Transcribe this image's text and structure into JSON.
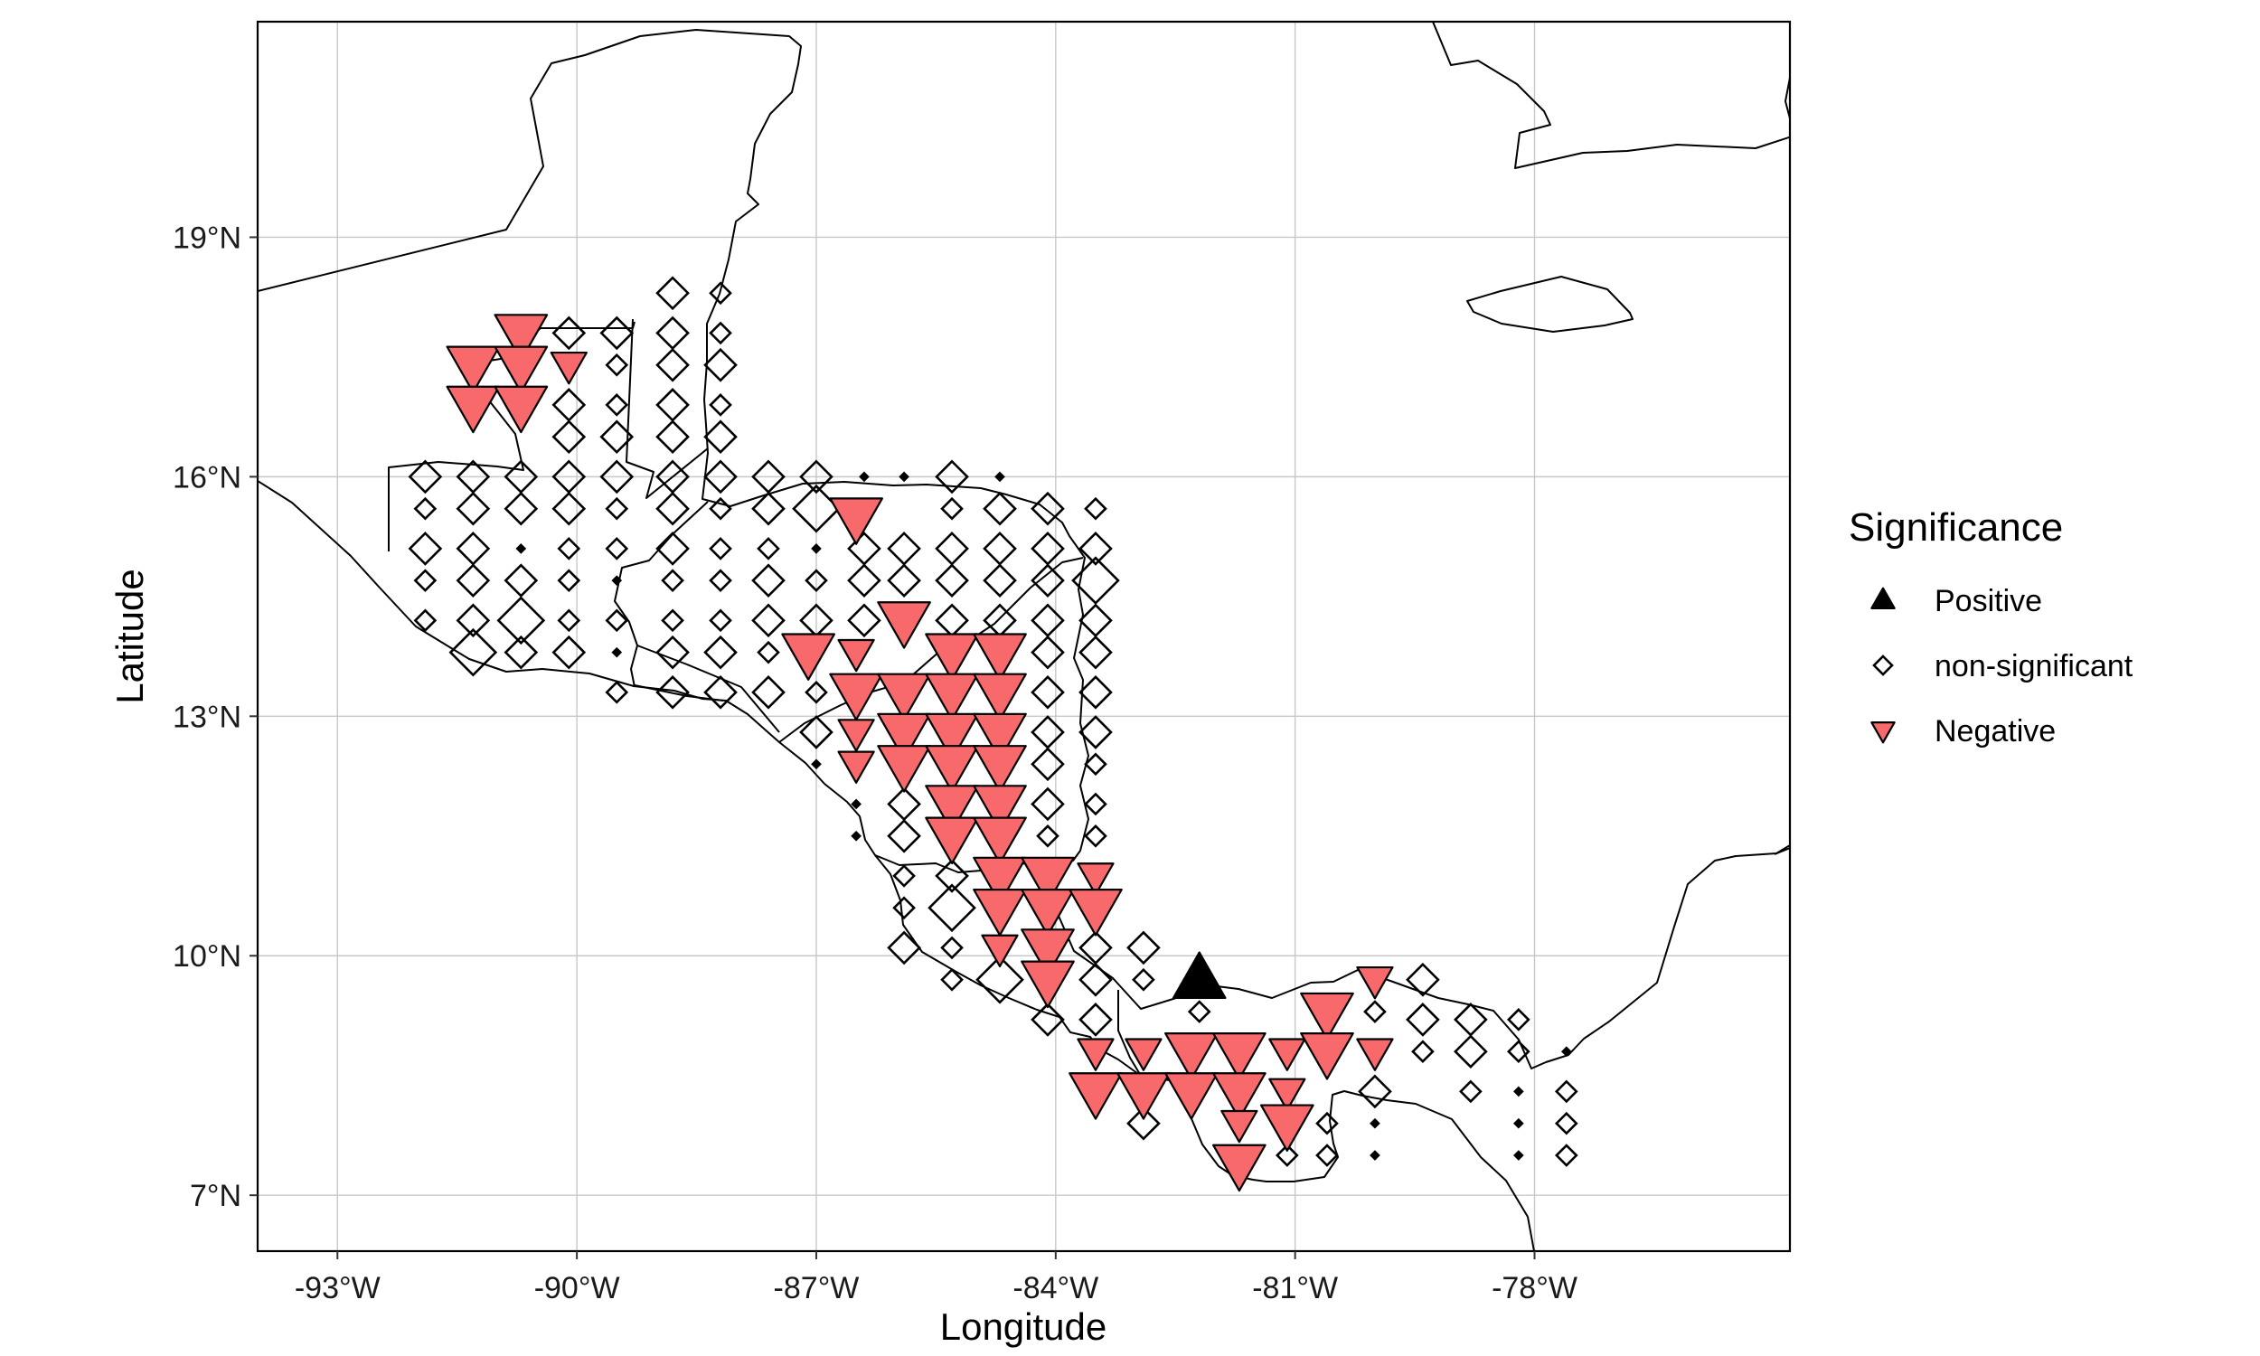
{
  "chart_data": {
    "type": "scatter",
    "xlabel": "Longitude",
    "ylabel": "Latitude",
    "xlim": [
      -94,
      -74.8
    ],
    "ylim": [
      6.3,
      21.7
    ],
    "x_ticks": [
      {
        "value": -93,
        "label": "-93°W"
      },
      {
        "value": -90,
        "label": "-90°W"
      },
      {
        "value": -87,
        "label": "-87°W"
      },
      {
        "value": -84,
        "label": "-84°W"
      },
      {
        "value": -81,
        "label": "-81°W"
      },
      {
        "value": -78,
        "label": "-78°W"
      }
    ],
    "y_ticks": [
      {
        "value": 7,
        "label": "7°N"
      },
      {
        "value": 10,
        "label": "10°N"
      },
      {
        "value": 13,
        "label": "13°N"
      },
      {
        "value": 16,
        "label": "16°N"
      },
      {
        "value": 19,
        "label": "19°N"
      }
    ],
    "grid": true,
    "legend": {
      "title": "Significance",
      "position": "right",
      "entries": [
        {
          "label": "Positive",
          "shape": "triangle-up",
          "color": "#000000"
        },
        {
          "label": "non-significant",
          "shape": "diamond-open",
          "color": "#000000"
        },
        {
          "label": "Negative",
          "shape": "triangle-down",
          "color": "#F8696B"
        }
      ]
    },
    "series": [
      {
        "name": "Positive",
        "points": [
          [
            -82.2,
            9.7,
            3
          ]
        ]
      },
      {
        "name": "Negative",
        "points": [
          [
            -90.7,
            17.8,
            3
          ],
          [
            -91.3,
            17.4,
            3
          ],
          [
            -90.7,
            17.4,
            3
          ],
          [
            -90.1,
            17.4,
            2
          ],
          [
            -91.3,
            16.9,
            3
          ],
          [
            -90.7,
            16.9,
            3
          ],
          [
            -86.5,
            15.5,
            3
          ],
          [
            -85.9,
            14.2,
            3
          ],
          [
            -87.1,
            13.8,
            3
          ],
          [
            -86.5,
            13.8,
            2
          ],
          [
            -85.3,
            13.8,
            3
          ],
          [
            -84.7,
            13.8,
            3
          ],
          [
            -86.5,
            13.3,
            3
          ],
          [
            -85.9,
            13.3,
            3
          ],
          [
            -85.3,
            13.3,
            3
          ],
          [
            -84.7,
            13.3,
            3
          ],
          [
            -86.5,
            12.8,
            2
          ],
          [
            -85.9,
            12.8,
            3
          ],
          [
            -85.3,
            12.8,
            3
          ],
          [
            -84.7,
            12.8,
            3
          ],
          [
            -86.5,
            12.4,
            2
          ],
          [
            -85.9,
            12.4,
            3
          ],
          [
            -85.3,
            12.4,
            3
          ],
          [
            -84.7,
            12.4,
            3
          ],
          [
            -85.3,
            11.9,
            3
          ],
          [
            -84.7,
            11.9,
            3
          ],
          [
            -85.3,
            11.5,
            3
          ],
          [
            -84.7,
            11.5,
            3
          ],
          [
            -84.7,
            11.0,
            3
          ],
          [
            -84.1,
            11.0,
            3
          ],
          [
            -83.5,
            11.0,
            2
          ],
          [
            -84.7,
            10.6,
            3
          ],
          [
            -84.1,
            10.6,
            3
          ],
          [
            -83.5,
            10.6,
            3
          ],
          [
            -84.7,
            10.1,
            2
          ],
          [
            -84.1,
            10.1,
            3
          ],
          [
            -84.1,
            9.7,
            3
          ],
          [
            -80.0,
            9.7,
            2
          ],
          [
            -80.6,
            9.3,
            3
          ],
          [
            -83.5,
            8.8,
            2
          ],
          [
            -82.9,
            8.8,
            2
          ],
          [
            -82.3,
            8.8,
            3
          ],
          [
            -81.7,
            8.8,
            3
          ],
          [
            -81.1,
            8.8,
            2
          ],
          [
            -80.6,
            8.8,
            3
          ],
          [
            -80.0,
            8.8,
            2
          ],
          [
            -83.5,
            8.3,
            3
          ],
          [
            -82.9,
            8.3,
            3
          ],
          [
            -82.3,
            8.3,
            3
          ],
          [
            -81.7,
            8.3,
            3
          ],
          [
            -81.1,
            8.3,
            2
          ],
          [
            -81.7,
            7.9,
            2
          ],
          [
            -81.1,
            7.9,
            3
          ],
          [
            -81.7,
            7.4,
            3
          ]
        ]
      },
      {
        "name": "non-significant",
        "points": [
          [
            -88.8,
            18.3,
            2
          ],
          [
            -88.2,
            18.3,
            1
          ],
          [
            -90.1,
            17.8,
            2
          ],
          [
            -89.5,
            17.8,
            2
          ],
          [
            -88.8,
            17.8,
            2
          ],
          [
            -88.2,
            17.8,
            1
          ],
          [
            -89.5,
            17.4,
            1
          ],
          [
            -88.8,
            17.4,
            2
          ],
          [
            -88.2,
            17.4,
            2
          ],
          [
            -90.1,
            16.9,
            2
          ],
          [
            -89.5,
            16.9,
            1
          ],
          [
            -88.8,
            16.9,
            2
          ],
          [
            -88.2,
            16.9,
            1
          ],
          [
            -90.1,
            16.5,
            2
          ],
          [
            -89.5,
            16.5,
            2
          ],
          [
            -88.8,
            16.5,
            2
          ],
          [
            -88.2,
            16.5,
            2
          ],
          [
            -90.7,
            16.0,
            2
          ],
          [
            -90.1,
            16.0,
            2
          ],
          [
            -89.5,
            16.0,
            2
          ],
          [
            -88.8,
            16.0,
            2
          ],
          [
            -88.2,
            16.0,
            2
          ],
          [
            -87.6,
            16.0,
            2
          ],
          [
            -87.0,
            16.0,
            2
          ],
          [
            -86.4,
            16.0,
            0
          ],
          [
            -85.9,
            16.0,
            0
          ],
          [
            -85.3,
            16.0,
            2
          ],
          [
            -84.7,
            16.0,
            0
          ],
          [
            -91.9,
            16.0,
            2
          ],
          [
            -91.3,
            16.0,
            2
          ],
          [
            -91.9,
            15.6,
            1
          ],
          [
            -91.3,
            15.6,
            2
          ],
          [
            -90.7,
            15.6,
            2
          ],
          [
            -90.1,
            15.6,
            2
          ],
          [
            -89.5,
            15.6,
            1
          ],
          [
            -88.8,
            15.6,
            2
          ],
          [
            -88.2,
            15.6,
            1
          ],
          [
            -87.6,
            15.6,
            2
          ],
          [
            -87.0,
            15.6,
            3
          ],
          [
            -85.3,
            15.6,
            1
          ],
          [
            -84.7,
            15.6,
            2
          ],
          [
            -84.1,
            15.6,
            2
          ],
          [
            -83.5,
            15.6,
            1
          ],
          [
            -91.9,
            15.1,
            2
          ],
          [
            -91.3,
            15.1,
            2
          ],
          [
            -90.7,
            15.1,
            0
          ],
          [
            -90.1,
            15.1,
            1
          ],
          [
            -89.5,
            15.1,
            1
          ],
          [
            -88.8,
            15.1,
            2
          ],
          [
            -88.2,
            15.1,
            1
          ],
          [
            -87.6,
            15.1,
            1
          ],
          [
            -87.0,
            15.1,
            0
          ],
          [
            -86.4,
            15.1,
            2
          ],
          [
            -85.9,
            15.1,
            2
          ],
          [
            -85.3,
            15.1,
            2
          ],
          [
            -84.7,
            15.1,
            2
          ],
          [
            -84.1,
            15.1,
            2
          ],
          [
            -83.5,
            15.1,
            2
          ],
          [
            -91.9,
            14.7,
            1
          ],
          [
            -91.3,
            14.7,
            2
          ],
          [
            -90.7,
            14.7,
            2
          ],
          [
            -90.1,
            14.7,
            1
          ],
          [
            -89.5,
            14.7,
            0
          ],
          [
            -88.8,
            14.7,
            1
          ],
          [
            -88.2,
            14.7,
            1
          ],
          [
            -87.6,
            14.7,
            2
          ],
          [
            -87.0,
            14.7,
            1
          ],
          [
            -86.4,
            14.7,
            2
          ],
          [
            -85.9,
            14.7,
            2
          ],
          [
            -85.3,
            14.7,
            2
          ],
          [
            -84.7,
            14.7,
            2
          ],
          [
            -84.1,
            14.7,
            2
          ],
          [
            -83.5,
            14.7,
            3
          ],
          [
            -91.9,
            14.2,
            1
          ],
          [
            -91.3,
            14.2,
            2
          ],
          [
            -90.7,
            14.2,
            3
          ],
          [
            -90.1,
            14.2,
            1
          ],
          [
            -89.5,
            14.2,
            1
          ],
          [
            -88.8,
            14.2,
            1
          ],
          [
            -88.2,
            14.2,
            1
          ],
          [
            -87.6,
            14.2,
            2
          ],
          [
            -87.0,
            14.2,
            2
          ],
          [
            -86.4,
            14.2,
            2
          ],
          [
            -85.3,
            14.2,
            2
          ],
          [
            -84.7,
            14.2,
            2
          ],
          [
            -84.1,
            14.2,
            2
          ],
          [
            -83.5,
            14.2,
            2
          ],
          [
            -91.3,
            13.8,
            3
          ],
          [
            -90.7,
            13.8,
            2
          ],
          [
            -90.1,
            13.8,
            2
          ],
          [
            -89.5,
            13.8,
            0
          ],
          [
            -88.8,
            13.8,
            2
          ],
          [
            -88.2,
            13.8,
            2
          ],
          [
            -87.6,
            13.8,
            1
          ],
          [
            -84.1,
            13.8,
            2
          ],
          [
            -83.5,
            13.8,
            2
          ],
          [
            -89.5,
            13.3,
            1
          ],
          [
            -88.8,
            13.3,
            2
          ],
          [
            -88.2,
            13.3,
            2
          ],
          [
            -87.6,
            13.3,
            2
          ],
          [
            -87.0,
            13.3,
            1
          ],
          [
            -84.1,
            13.3,
            2
          ],
          [
            -83.5,
            13.3,
            2
          ],
          [
            -87.0,
            12.8,
            2
          ],
          [
            -84.1,
            12.8,
            2
          ],
          [
            -83.5,
            12.8,
            2
          ],
          [
            -87.0,
            12.4,
            0
          ],
          [
            -84.1,
            12.4,
            2
          ],
          [
            -83.5,
            12.4,
            1
          ],
          [
            -86.5,
            11.9,
            0
          ],
          [
            -85.9,
            11.9,
            2
          ],
          [
            -84.1,
            11.9,
            2
          ],
          [
            -83.5,
            11.9,
            1
          ],
          [
            -86.5,
            11.5,
            0
          ],
          [
            -85.9,
            11.5,
            2
          ],
          [
            -84.1,
            11.5,
            1
          ],
          [
            -83.5,
            11.5,
            1
          ],
          [
            -85.9,
            11.0,
            1
          ],
          [
            -85.3,
            11.0,
            2
          ],
          [
            -85.9,
            10.6,
            1
          ],
          [
            -85.3,
            10.6,
            3
          ],
          [
            -85.9,
            10.1,
            2
          ],
          [
            -85.3,
            10.1,
            1
          ],
          [
            -83.5,
            10.1,
            2
          ],
          [
            -82.9,
            10.1,
            2
          ],
          [
            -85.3,
            9.7,
            1
          ],
          [
            -84.7,
            9.7,
            3
          ],
          [
            -83.5,
            9.7,
            2
          ],
          [
            -82.9,
            9.7,
            1
          ],
          [
            -84.1,
            9.2,
            2
          ],
          [
            -83.5,
            9.2,
            2
          ],
          [
            -82.2,
            9.3,
            1
          ],
          [
            -79.4,
            9.7,
            2
          ],
          [
            -80.0,
            9.3,
            1
          ],
          [
            -79.4,
            9.2,
            2
          ],
          [
            -78.8,
            9.2,
            2
          ],
          [
            -78.2,
            9.2,
            1
          ],
          [
            -79.4,
            8.8,
            1
          ],
          [
            -78.8,
            8.8,
            2
          ],
          [
            -78.2,
            8.8,
            1
          ],
          [
            -77.6,
            8.8,
            0
          ],
          [
            -80.0,
            8.3,
            2
          ],
          [
            -78.8,
            8.3,
            1
          ],
          [
            -78.2,
            8.3,
            0
          ],
          [
            -77.6,
            8.3,
            1
          ],
          [
            -82.9,
            7.9,
            2
          ],
          [
            -80.6,
            7.9,
            1
          ],
          [
            -80.0,
            7.9,
            0
          ],
          [
            -78.2,
            7.9,
            0
          ],
          [
            -77.6,
            7.9,
            1
          ],
          [
            -81.1,
            7.5,
            1
          ],
          [
            -80.6,
            7.5,
            1
          ],
          [
            -80.0,
            7.5,
            0
          ],
          [
            -78.2,
            7.5,
            0
          ],
          [
            -77.6,
            7.5,
            1
          ]
        ]
      }
    ]
  }
}
